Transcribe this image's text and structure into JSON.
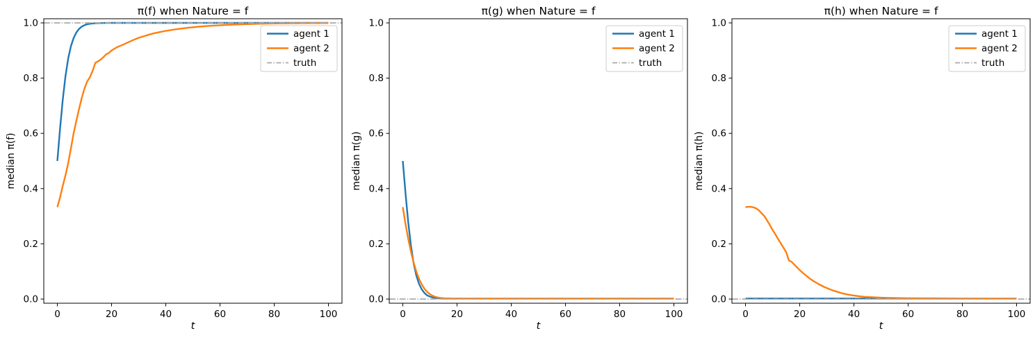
{
  "figure": {
    "background": "#ffffff",
    "colors": {
      "agent1": "#1f77b4",
      "agent2": "#ff7f0e",
      "truth": "#a9a9a9",
      "axis": "#000000",
      "legend_border": "#cccccc"
    }
  },
  "chart_data": [
    {
      "type": "line",
      "title": "π(f) when Nature = f",
      "xlabel": "t",
      "ylabel": "median π(f)",
      "xlim": [
        -5,
        105
      ],
      "ylim": [
        -0.015,
        1.015
      ],
      "xticks": [
        0,
        20,
        40,
        60,
        80,
        100
      ],
      "yticks": [
        "0.0",
        "0.2",
        "0.4",
        "0.6",
        "0.8",
        "1.0"
      ],
      "grid": false,
      "legend_position": "upper right",
      "truth_y": 1.0,
      "series": [
        {
          "name": "agent 1",
          "color": "#1f77b4",
          "style": "solid",
          "points": [
            [
              0,
              0.5
            ],
            [
              1,
              0.617
            ],
            [
              2,
              0.722
            ],
            [
              3,
              0.807
            ],
            [
              4,
              0.871
            ],
            [
              5,
              0.915
            ],
            [
              6,
              0.945
            ],
            [
              7,
              0.965
            ],
            [
              8,
              0.978
            ],
            [
              9,
              0.9865
            ],
            [
              10,
              0.9916
            ],
            [
              11,
              0.9948
            ],
            [
              12,
              0.9968
            ],
            [
              13,
              0.998
            ],
            [
              14,
              0.9988
            ],
            [
              15,
              0.9992
            ],
            [
              16,
              0.9995
            ],
            [
              18,
              0.9998
            ],
            [
              20,
              0.9999
            ],
            [
              30,
              1.0
            ],
            [
              60,
              1.0
            ],
            [
              100,
              1.0
            ]
          ]
        },
        {
          "name": "agent 2",
          "color": "#ff7f0e",
          "style": "solid",
          "points": [
            [
              0,
              0.333
            ],
            [
              1,
              0.368
            ],
            [
              2,
              0.41
            ],
            [
              3,
              0.448
            ],
            [
              4,
              0.492
            ],
            [
              5,
              0.545
            ],
            [
              6,
              0.6
            ],
            [
              7,
              0.645
            ],
            [
              8,
              0.688
            ],
            [
              9,
              0.728
            ],
            [
              10,
              0.762
            ],
            [
              11,
              0.788
            ],
            [
              12,
              0.803
            ],
            [
              13,
              0.826
            ],
            [
              14,
              0.855
            ],
            [
              15,
              0.861
            ],
            [
              16,
              0.867
            ],
            [
              17,
              0.876
            ],
            [
              18,
              0.886
            ],
            [
              19,
              0.891
            ],
            [
              20,
              0.9
            ],
            [
              22,
              0.912
            ],
            [
              24,
              0.92
            ],
            [
              26,
              0.929
            ],
            [
              28,
              0.938
            ],
            [
              30,
              0.946
            ],
            [
              32,
              0.952
            ],
            [
              34,
              0.958
            ],
            [
              36,
              0.963
            ],
            [
              38,
              0.967
            ],
            [
              40,
              0.971
            ],
            [
              44,
              0.977
            ],
            [
              48,
              0.982
            ],
            [
              52,
              0.986
            ],
            [
              56,
              0.989
            ],
            [
              60,
              0.9915
            ],
            [
              65,
              0.9938
            ],
            [
              70,
              0.9955
            ],
            [
              75,
              0.997
            ],
            [
              80,
              0.998
            ],
            [
              90,
              0.999
            ],
            [
              100,
              0.9995
            ]
          ]
        },
        {
          "name": "truth",
          "color": "#a9a9a9",
          "style": "dashdot",
          "points": [
            [
              -5,
              1.0
            ],
            [
              105,
              1.0
            ]
          ]
        }
      ]
    },
    {
      "type": "line",
      "title": "π(g) when Nature = f",
      "xlabel": "t",
      "ylabel": "median π(g)",
      "xlim": [
        -5,
        105
      ],
      "ylim": [
        -0.015,
        1.015
      ],
      "xticks": [
        0,
        20,
        40,
        60,
        80,
        100
      ],
      "yticks": [
        "0.0",
        "0.2",
        "0.4",
        "0.6",
        "0.8",
        "1.0"
      ],
      "grid": false,
      "legend_position": "upper right",
      "truth_y": 0.0,
      "series": [
        {
          "name": "agent 1",
          "color": "#1f77b4",
          "style": "solid",
          "points": [
            [
              0,
              0.5
            ],
            [
              1,
              0.383
            ],
            [
              2,
              0.278
            ],
            [
              3,
              0.193
            ],
            [
              4,
              0.129
            ],
            [
              5,
              0.085
            ],
            [
              6,
              0.055
            ],
            [
              7,
              0.035
            ],
            [
              8,
              0.022
            ],
            [
              9,
              0.0135
            ],
            [
              10,
              0.009
            ],
            [
              11,
              0.006
            ],
            [
              12,
              0.004
            ],
            [
              13,
              0.003
            ],
            [
              14,
              0.0025
            ],
            [
              16,
              0.002
            ],
            [
              20,
              0.002
            ],
            [
              60,
              0.002
            ],
            [
              100,
              0.002
            ]
          ]
        },
        {
          "name": "agent 2",
          "color": "#ff7f0e",
          "style": "solid",
          "points": [
            [
              0,
              0.333
            ],
            [
              1,
              0.272
            ],
            [
              2,
              0.218
            ],
            [
              3,
              0.172
            ],
            [
              4,
              0.132
            ],
            [
              5,
              0.099
            ],
            [
              6,
              0.073
            ],
            [
              7,
              0.053
            ],
            [
              8,
              0.037
            ],
            [
              9,
              0.026
            ],
            [
              10,
              0.018
            ],
            [
              11,
              0.012
            ],
            [
              12,
              0.008
            ],
            [
              13,
              0.0055
            ],
            [
              14,
              0.004
            ],
            [
              15,
              0.003
            ],
            [
              16,
              0.0025
            ],
            [
              18,
              0.002
            ],
            [
              60,
              0.002
            ],
            [
              100,
              0.002
            ]
          ]
        },
        {
          "name": "truth",
          "color": "#a9a9a9",
          "style": "dashdot",
          "points": [
            [
              -5,
              0.0
            ],
            [
              105,
              0.0
            ]
          ]
        }
      ]
    },
    {
      "type": "line",
      "title": "π(h) when Nature = f",
      "xlabel": "t",
      "ylabel": "median π(h)",
      "xlim": [
        -5,
        105
      ],
      "ylim": [
        -0.015,
        1.015
      ],
      "xticks": [
        0,
        20,
        40,
        60,
        80,
        100
      ],
      "yticks": [
        "0.0",
        "0.2",
        "0.4",
        "0.6",
        "0.8",
        "1.0"
      ],
      "grid": false,
      "legend_position": "upper right",
      "truth_y": 0.0,
      "series": [
        {
          "name": "agent 1",
          "color": "#1f77b4",
          "style": "solid",
          "points": [
            [
              0,
              0.002
            ],
            [
              50,
              0.002
            ],
            [
              100,
              0.002
            ]
          ]
        },
        {
          "name": "agent 2",
          "color": "#ff7f0e",
          "style": "solid",
          "points": [
            [
              0,
              0.333
            ],
            [
              1,
              0.334
            ],
            [
              2,
              0.334
            ],
            [
              3,
              0.332
            ],
            [
              4,
              0.328
            ],
            [
              5,
              0.321
            ],
            [
              6,
              0.31
            ],
            [
              7,
              0.3
            ],
            [
              8,
              0.284
            ],
            [
              9,
              0.268
            ],
            [
              10,
              0.25
            ],
            [
              11,
              0.235
            ],
            [
              12,
              0.218
            ],
            [
              13,
              0.202
            ],
            [
              14,
              0.186
            ],
            [
              15,
              0.17
            ],
            [
              16,
              0.14
            ],
            [
              17,
              0.135
            ],
            [
              18,
              0.125
            ],
            [
              19,
              0.115
            ],
            [
              20,
              0.105
            ],
            [
              21,
              0.096
            ],
            [
              22,
              0.088
            ],
            [
              23,
              0.08
            ],
            [
              24,
              0.072
            ],
            [
              25,
              0.066
            ],
            [
              26,
              0.06
            ],
            [
              27,
              0.054
            ],
            [
              28,
              0.049
            ],
            [
              29,
              0.044
            ],
            [
              30,
              0.04
            ],
            [
              32,
              0.032
            ],
            [
              34,
              0.026
            ],
            [
              36,
              0.02
            ],
            [
              38,
              0.016
            ],
            [
              40,
              0.013
            ],
            [
              42,
              0.01
            ],
            [
              44,
              0.008
            ],
            [
              46,
              0.007
            ],
            [
              48,
              0.006
            ],
            [
              50,
              0.005
            ],
            [
              55,
              0.004
            ],
            [
              60,
              0.003
            ],
            [
              70,
              0.0025
            ],
            [
              80,
              0.002
            ],
            [
              90,
              0.002
            ],
            [
              100,
              0.002
            ]
          ]
        },
        {
          "name": "truth",
          "color": "#a9a9a9",
          "style": "dashdot",
          "points": [
            [
              -5,
              0.0
            ],
            [
              105,
              0.0
            ]
          ]
        }
      ]
    }
  ]
}
